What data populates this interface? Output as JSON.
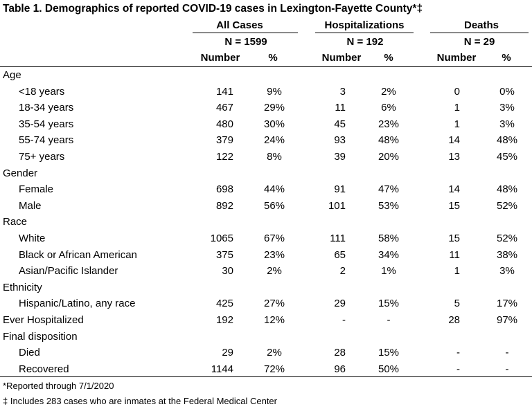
{
  "title": "Table 1. Demographics of reported COVID-19 cases in Lexington-Fayette County*‡",
  "groups": [
    {
      "name": "All Cases",
      "n": "N = 1599"
    },
    {
      "name": "Hospitalizations",
      "n": "N = 192"
    },
    {
      "name": "Deaths",
      "n": "N = 29"
    }
  ],
  "subheaders": {
    "number": "Number",
    "pct": "%"
  },
  "rows": [
    {
      "label": "Age",
      "type": "section",
      "vals": []
    },
    {
      "label": "<18 years",
      "type": "item",
      "vals": [
        "141",
        "9%",
        "3",
        "2%",
        "0",
        "0%"
      ]
    },
    {
      "label": "18-34 years",
      "type": "item",
      "vals": [
        "467",
        "29%",
        "11",
        "6%",
        "1",
        "3%"
      ]
    },
    {
      "label": "35-54 years",
      "type": "item",
      "vals": [
        "480",
        "30%",
        "45",
        "23%",
        "1",
        "3%"
      ]
    },
    {
      "label": "55-74 years",
      "type": "item",
      "vals": [
        "379",
        "24%",
        "93",
        "48%",
        "14",
        "48%"
      ]
    },
    {
      "label": "75+ years",
      "type": "item",
      "vals": [
        "122",
        "8%",
        "39",
        "20%",
        "13",
        "45%"
      ]
    },
    {
      "label": "Gender",
      "type": "section",
      "vals": []
    },
    {
      "label": "Female",
      "type": "item",
      "vals": [
        "698",
        "44%",
        "91",
        "47%",
        "14",
        "48%"
      ]
    },
    {
      "label": "Male",
      "type": "item",
      "vals": [
        "892",
        "56%",
        "101",
        "53%",
        "15",
        "52%"
      ]
    },
    {
      "label": "Race",
      "type": "section",
      "vals": []
    },
    {
      "label": "White",
      "type": "item",
      "vals": [
        "1065",
        "67%",
        "111",
        "58%",
        "15",
        "52%"
      ]
    },
    {
      "label": "Black or African American",
      "type": "item",
      "vals": [
        "375",
        "23%",
        "65",
        "34%",
        "11",
        "38%"
      ]
    },
    {
      "label": "Asian/Pacific Islander",
      "type": "item",
      "vals": [
        "30",
        "2%",
        "2",
        "1%",
        "1",
        "3%"
      ]
    },
    {
      "label": "Ethnicity",
      "type": "section",
      "vals": []
    },
    {
      "label": "Hispanic/Latino, any race",
      "type": "item",
      "vals": [
        "425",
        "27%",
        "29",
        "15%",
        "5",
        "17%"
      ]
    },
    {
      "label": "Ever Hospitalized",
      "type": "section",
      "vals": [
        "192",
        "12%",
        "-",
        "-",
        "28",
        "97%"
      ]
    },
    {
      "label": "Final disposition",
      "type": "section",
      "vals": []
    },
    {
      "label": "Died",
      "type": "item",
      "vals": [
        "29",
        "2%",
        "28",
        "15%",
        "-",
        "-"
      ]
    },
    {
      "label": "Recovered",
      "type": "item",
      "vals": [
        "1144",
        "72%",
        "96",
        "50%",
        "-",
        "-"
      ]
    }
  ],
  "footnotes": [
    "*Reported through 7/1/2020",
    "‡ Includes 283 cases who are inmates at the Federal Medical Center"
  ]
}
